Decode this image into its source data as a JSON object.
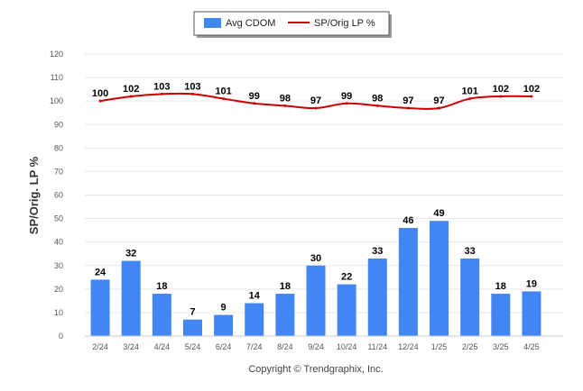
{
  "chart_data": {
    "type": "bar",
    "ylabel": "SP/Orig. LP %",
    "ylim": [
      0,
      120
    ],
    "yticks": [
      0,
      10,
      20,
      30,
      40,
      50,
      60,
      70,
      80,
      90,
      100,
      110,
      120
    ],
    "grid": true,
    "legend_position": "top-center",
    "categories": [
      "2/24",
      "3/24",
      "4/24",
      "5/24",
      "6/24",
      "7/24",
      "8/24",
      "9/24",
      "10/24",
      "11/24",
      "12/24",
      "1/25",
      "2/25",
      "3/25",
      "4/25"
    ],
    "series": [
      {
        "name": "Avg CDOM",
        "type": "bar",
        "color": "#4286f4",
        "values": [
          24,
          32,
          18,
          7,
          9,
          14,
          18,
          30,
          22,
          33,
          46,
          49,
          33,
          18,
          19
        ]
      },
      {
        "name": "SP/Orig LP %",
        "type": "line",
        "color": "#cc0000",
        "values": [
          100,
          102,
          103,
          103,
          101,
          99,
          98,
          97,
          99,
          98,
          97,
          97,
          101,
          102,
          102
        ]
      }
    ],
    "credit": "Copyright © Trendgraphix, Inc."
  }
}
